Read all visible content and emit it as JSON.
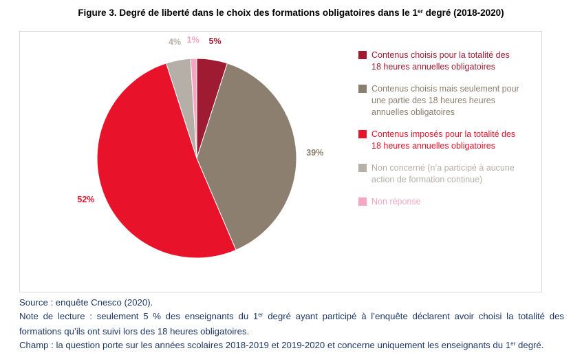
{
  "title": {
    "pre": "Figure 3. Degré de liberté dans le choix des formations obligatoires dans le 1",
    "sup": "er",
    "post": " degré (2018-2020)"
  },
  "chart_data": {
    "type": "pie",
    "title": "Degré de liberté dans le choix des formations obligatoires dans le 1er degré (2018-2020)",
    "legend_position": "right",
    "start_angle_deg": 0,
    "direction": "clockwise",
    "slices": [
      {
        "label": "Contenus choisis pour la totalité des 18 heures annuelles obligatoires",
        "value": 5,
        "pct_label": "5%",
        "color": "#9e1b32"
      },
      {
        "label": "Contenus choisis mais seulement pour une partie des 18 heures heures annuelles obligatoires",
        "value": 39,
        "pct_label": "39%",
        "color": "#8c7f6f"
      },
      {
        "label": "Contenus imposés pour la totalité des 18 heures annuelles obligatoires",
        "value": 52,
        "pct_label": "52%",
        "color": "#e8132b"
      },
      {
        "label": "Non concerné (n’a participé à aucune action de formation continue)",
        "value": 4,
        "pct_label": "4%",
        "color": "#b6afa7"
      },
      {
        "label": "Non réponse",
        "value": 1,
        "pct_label": "1%",
        "color": "#f7a6c0"
      }
    ]
  },
  "notes": {
    "source": "Source : enquête Cnesco (2020).",
    "note_pre": "Note de lecture : seulement 5 % des enseignants du 1",
    "note_sup": "er",
    "note_post": " degré ayant participé à l’enquête déclarent avoir choisi la totalité des formations qu’ils ont suivi lors des 18 heures obligatoires.",
    "champ_pre": "Champ : la question porte sur les années scolaires 2018-2019 et 2019-2020 et concerne uniquement les enseignants du 1",
    "champ_sup": "er",
    "champ_post": " degré."
  }
}
